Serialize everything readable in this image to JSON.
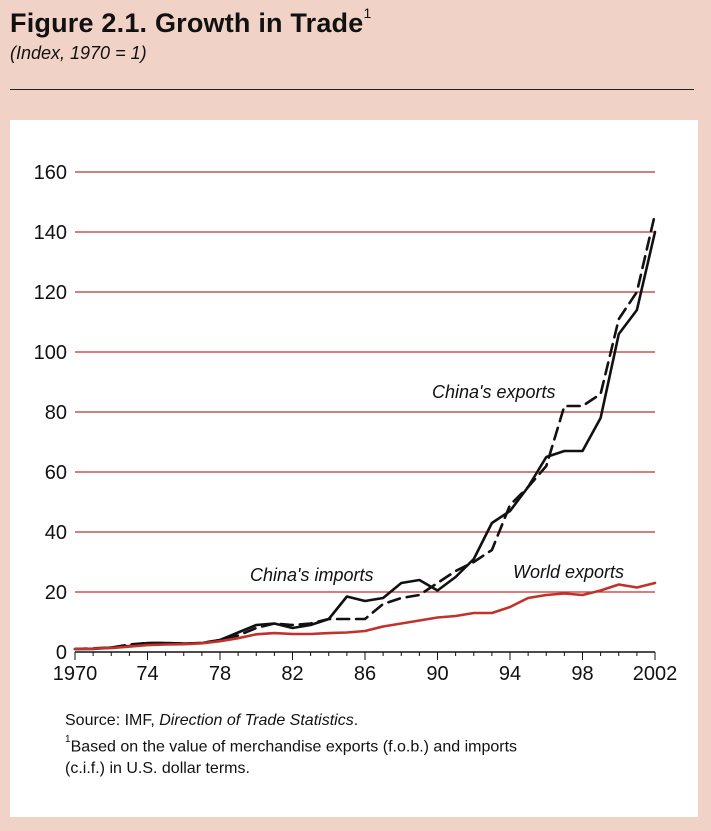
{
  "header": {
    "title": "Figure 2.1. Growth in Trade",
    "title_note": "1",
    "subtitle": "(Index, 1970 = 1)"
  },
  "notes": {
    "source_prefix": "Source: IMF, ",
    "source_italic": "Direction of Trade Statistics",
    "source_suffix": ".",
    "footnote_mark": "1",
    "footnote_line1": "Based on the value of merchandise exports (f.o.b.) and imports",
    "footnote_line2": "(c.i.f.) in U.S. dollar terms."
  },
  "colors": {
    "background": "#f1d2c6",
    "panel": "#ffffff",
    "gridline": "#c0322b",
    "world_exports": "#c0322b",
    "china_exports": "#111111",
    "china_imports": "#111111"
  },
  "chart_data": {
    "type": "line",
    "title": "Growth in Trade",
    "xlabel": "",
    "ylabel": "",
    "ylim": [
      0,
      160
    ],
    "xlim": [
      1970,
      2002
    ],
    "yticks": [
      0,
      20,
      40,
      60,
      80,
      100,
      120,
      140,
      160
    ],
    "xtick_values": [
      1970,
      1974,
      1978,
      1982,
      1986,
      1990,
      1994,
      1998,
      2002
    ],
    "xtick_labels": [
      "1970",
      "74",
      "78",
      "82",
      "86",
      "90",
      "94",
      "98",
      "2002"
    ],
    "grid": true,
    "series": [
      {
        "name": "China's exports",
        "style": "dashed",
        "x": [
          1970,
          1971,
          1972,
          1973,
          1974,
          1975,
          1976,
          1977,
          1978,
          1979,
          1980,
          1981,
          1982,
          1983,
          1984,
          1985,
          1986,
          1987,
          1988,
          1989,
          1990,
          1991,
          1992,
          1993,
          1994,
          1995,
          1996,
          1997,
          1998,
          1999,
          2000,
          2001,
          2002
        ],
        "values": [
          1,
          1.2,
          1.5,
          2.5,
          3,
          3,
          2.8,
          3,
          4,
          5.5,
          8,
          9.5,
          9,
          9.5,
          11,
          11,
          11,
          16,
          18,
          19,
          23,
          27,
          30,
          34,
          49,
          55,
          62,
          82,
          82,
          86,
          111,
          120,
          146
        ]
      },
      {
        "name": "China's imports",
        "style": "solid",
        "x": [
          1970,
          1971,
          1972,
          1973,
          1974,
          1975,
          1976,
          1977,
          1978,
          1979,
          1980,
          1981,
          1982,
          1983,
          1984,
          1985,
          1986,
          1987,
          1988,
          1989,
          1990,
          1991,
          1992,
          1993,
          1994,
          1995,
          1996,
          1997,
          1998,
          1999,
          2000,
          2001,
          2002
        ],
        "values": [
          1,
          1,
          1.5,
          2,
          3,
          3,
          2.8,
          3,
          4,
          6.5,
          9,
          9.5,
          8,
          9,
          11,
          18.5,
          17,
          18,
          23,
          24,
          20.5,
          25,
          31,
          43,
          47,
          55,
          65,
          67,
          67,
          78,
          106,
          114,
          140
        ]
      },
      {
        "name": "World exports",
        "style": "solid",
        "x": [
          1970,
          1971,
          1972,
          1973,
          1974,
          1975,
          1976,
          1977,
          1978,
          1979,
          1980,
          1981,
          1982,
          1983,
          1984,
          1985,
          1986,
          1987,
          1988,
          1989,
          1990,
          1991,
          1992,
          1993,
          1994,
          1995,
          1996,
          1997,
          1998,
          1999,
          2000,
          2001,
          2002
        ],
        "values": [
          1,
          1.1,
          1.3,
          1.8,
          2.3,
          2.5,
          2.6,
          2.9,
          3.6,
          4.6,
          5.9,
          6.3,
          6,
          6,
          6.3,
          6.5,
          7,
          8.5,
          9.5,
          10.5,
          11.5,
          12,
          13,
          13,
          15,
          18,
          19,
          19.5,
          19,
          20.5,
          22.5,
          21.5,
          23
        ]
      }
    ],
    "annotations": [
      "China's exports",
      "China's imports",
      "World exports"
    ]
  }
}
